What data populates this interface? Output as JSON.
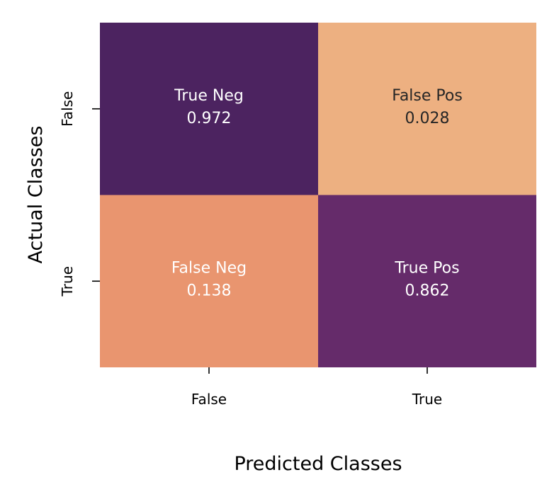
{
  "chart_data": {
    "type": "heatmap",
    "title": "",
    "xlabel": "Predicted Classes",
    "ylabel": "Actual Classes",
    "x_categories": [
      "False",
      "True"
    ],
    "y_categories": [
      "False",
      "True"
    ],
    "cells": [
      {
        "row": 0,
        "col": 0,
        "label": "True Neg",
        "value": 0.972,
        "color": "#4c2360",
        "text_color": "#ffffff"
      },
      {
        "row": 0,
        "col": 1,
        "label": "False Pos",
        "value": 0.028,
        "color": "#edb081",
        "text_color": "#262626"
      },
      {
        "row": 1,
        "col": 0,
        "label": "False Neg",
        "value": 0.138,
        "color": "#e9956f",
        "text_color": "#ffffff"
      },
      {
        "row": 1,
        "col": 1,
        "label": "True Pos",
        "value": 0.862,
        "color": "#652b6a",
        "text_color": "#ffffff"
      }
    ],
    "colorbar": false,
    "grid": false
  }
}
